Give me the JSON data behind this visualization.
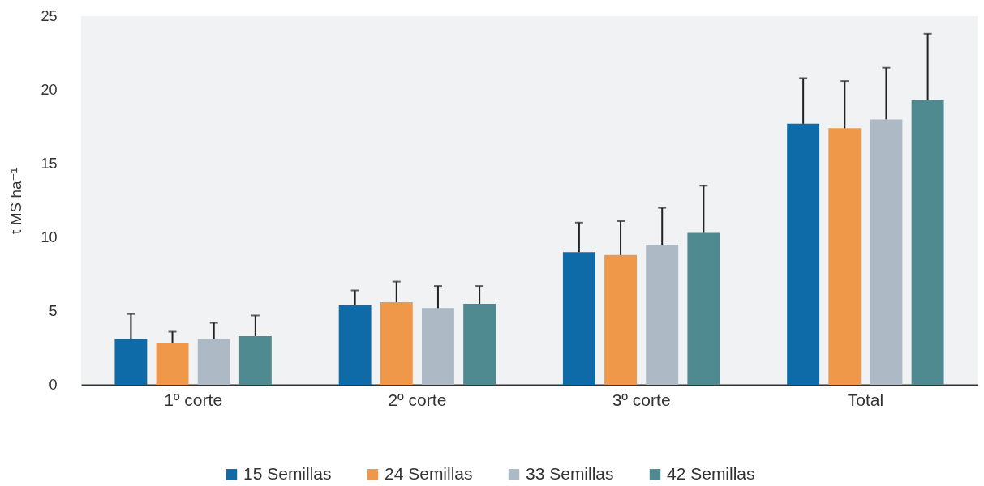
{
  "chart_data": {
    "type": "bar",
    "ylabel": "t MS ha⁻¹",
    "categories": [
      "1º corte",
      "2º corte",
      "3º corte",
      "Total"
    ],
    "series": [
      {
        "name": "15 Semillas",
        "color": "#0f6ba8",
        "values": [
          3.1,
          5.4,
          9.0,
          17.7
        ],
        "errors": [
          [
            3.1,
            4.8
          ],
          [
            5.4,
            6.4
          ],
          [
            9.0,
            11.0
          ],
          [
            17.7,
            20.8
          ]
        ]
      },
      {
        "name": "24 Semillas",
        "color": "#f09849",
        "values": [
          2.8,
          5.6,
          8.8,
          17.4
        ],
        "errors": [
          [
            2.8,
            3.6
          ],
          [
            5.6,
            7.0
          ],
          [
            8.8,
            11.1
          ],
          [
            17.4,
            20.6
          ]
        ]
      },
      {
        "name": "33 Semillas",
        "color": "#adbac5",
        "values": [
          3.1,
          5.2,
          9.5,
          18.0
        ],
        "errors": [
          [
            3.1,
            4.2
          ],
          [
            5.2,
            6.7
          ],
          [
            9.5,
            12.0
          ],
          [
            18.0,
            21.5
          ]
        ]
      },
      {
        "name": "42 Semillas",
        "color": "#4e8a8f",
        "values": [
          3.3,
          5.5,
          10.3,
          19.3
        ],
        "errors": [
          [
            3.3,
            4.7
          ],
          [
            5.5,
            6.7
          ],
          [
            10.3,
            13.5
          ],
          [
            19.3,
            23.8
          ]
        ]
      }
    ],
    "ylim": [
      0,
      25
    ],
    "yticks": [
      0,
      5,
      10,
      15,
      20,
      25
    ],
    "grid": false,
    "legend": "bottom"
  }
}
